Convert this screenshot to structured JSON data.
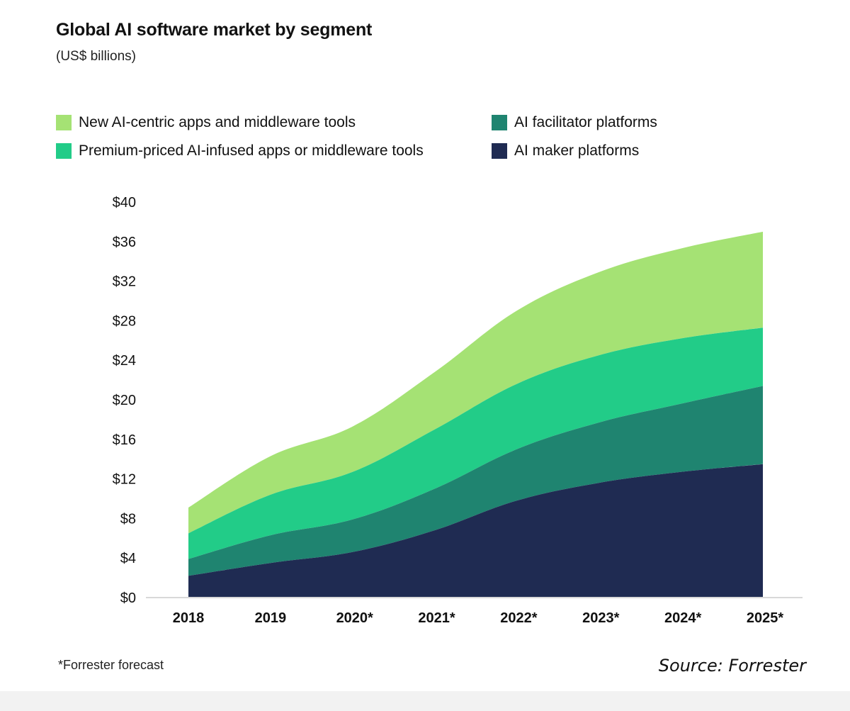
{
  "chart_data": {
    "type": "area",
    "stacked": true,
    "title": "Global AI software market by segment",
    "subtitle": "(US$ billions)",
    "xlabel": "",
    "ylabel": "",
    "categories": [
      "2018",
      "2019",
      "2020*",
      "2021*",
      "2022*",
      "2023*",
      "2024*",
      "2025*"
    ],
    "ylim": [
      0,
      40
    ],
    "yticks": [
      "$0",
      "$4",
      "$8",
      "$12",
      "$16",
      "$20",
      "$24",
      "$28",
      "$32",
      "$36",
      "$40"
    ],
    "series": [
      {
        "name": "AI maker platforms",
        "color": "#1f2b52",
        "values": [
          2.2,
          3.5,
          4.6,
          6.8,
          9.8,
          11.6,
          12.7,
          13.5
        ]
      },
      {
        "name": "AI facilitator platforms",
        "color": "#1f8470",
        "values": [
          1.7,
          2.8,
          3.3,
          4.2,
          5.2,
          6.1,
          6.9,
          7.9
        ]
      },
      {
        "name": "Premium-priced AI-infused apps or middleware tools",
        "color": "#22cc88",
        "values": [
          2.6,
          4.1,
          4.8,
          6.0,
          6.6,
          6.8,
          6.6,
          5.9
        ]
      },
      {
        "name": "New AI-centric apps and middleware tools",
        "color": "#a5e274",
        "values": [
          2.6,
          3.9,
          4.6,
          5.8,
          7.4,
          8.4,
          9.1,
          9.7
        ]
      }
    ],
    "legend_position": "top"
  },
  "legend": [
    {
      "label": "New AI-centric apps and middleware tools",
      "color": "#a5e274"
    },
    {
      "label": "AI facilitator platforms",
      "color": "#1f8470"
    },
    {
      "label": "Premium-priced AI-infused apps or middleware tools",
      "color": "#22cc88"
    },
    {
      "label": "AI maker platforms",
      "color": "#1f2b52"
    }
  ],
  "footnote": "*Forrester forecast",
  "source": "Source: Forrester"
}
